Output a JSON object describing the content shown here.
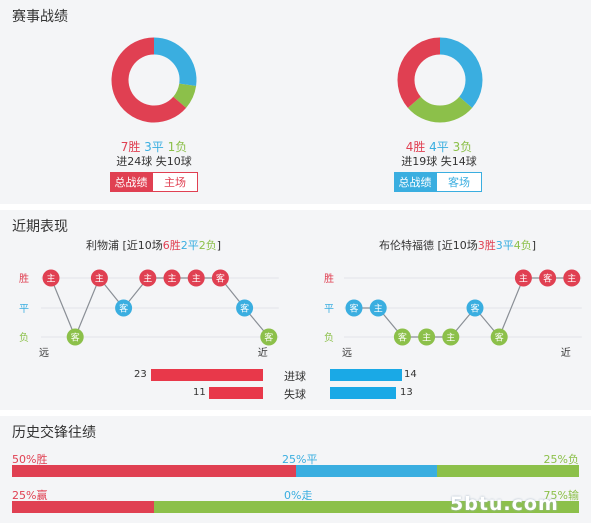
{
  "section1": {
    "title": "赛事战绩",
    "left": {
      "win": 7,
      "draw": 3,
      "loss": 1,
      "win_text": "7胜",
      "draw_text": "3平",
      "loss_text": "1负",
      "goals_text": "进24球 失10球",
      "tab_active": "总战绩",
      "tab_other": "主场"
    },
    "right": {
      "win": 4,
      "draw": 4,
      "loss": 3,
      "win_text": "4胜",
      "draw_text": "4平",
      "loss_text": "3负",
      "goals_text": "进19球 失14球",
      "tab_active": "总战绩",
      "tab_other": "客场"
    }
  },
  "section2": {
    "title": "近期表现",
    "y_labels": {
      "win": "胜",
      "draw": "平",
      "loss": "负"
    },
    "far": "远",
    "near": "近",
    "left_team": {
      "name": "利物浦",
      "prefix": "[近10场",
      "w": "6胜",
      "d": "2平",
      "l": "2负",
      "suffix": "]"
    },
    "right_team": {
      "name": "布伦特福德",
      "prefix": "[近10场",
      "w": "3胜",
      "d": "3平",
      "l": "4负",
      "suffix": "]"
    },
    "left_form": [
      {
        "r": "w",
        "v": "主"
      },
      {
        "r": "l",
        "v": "客"
      },
      {
        "r": "w",
        "v": "主"
      },
      {
        "r": "d",
        "v": "客"
      },
      {
        "r": "w",
        "v": "主"
      },
      {
        "r": "w",
        "v": "主"
      },
      {
        "r": "w",
        "v": "主"
      },
      {
        "r": "w",
        "v": "客"
      },
      {
        "r": "d",
        "v": "客"
      },
      {
        "r": "l",
        "v": "客"
      }
    ],
    "right_form": [
      {
        "r": "d",
        "v": "客"
      },
      {
        "r": "d",
        "v": "主"
      },
      {
        "r": "l",
        "v": "客"
      },
      {
        "r": "l",
        "v": "主"
      },
      {
        "r": "l",
        "v": "主"
      },
      {
        "r": "d",
        "v": "客"
      },
      {
        "r": "l",
        "v": "客"
      },
      {
        "r": "w",
        "v": "主"
      },
      {
        "r": "w",
        "v": "客"
      },
      {
        "r": "w",
        "v": "主"
      }
    ],
    "goals_for_label": "进球",
    "goals_against_label": "失球",
    "left_goals_for": 23,
    "left_goals_against": 11,
    "right_goals_for": 14,
    "right_goals_against": 13
  },
  "section3": {
    "title": "历史交锋往绩",
    "row1": {
      "left": "50%胜",
      "mid": "25%平",
      "right": "25%负",
      "a": 50,
      "b": 25,
      "c": 25
    },
    "row2": {
      "left": "25%赢",
      "mid": "0%走",
      "right": "75%输",
      "a": 25,
      "b": 0,
      "c": 75
    }
  },
  "colors": {
    "win": "#e04052",
    "draw": "#3aaee0",
    "loss": "#8cc04a",
    "bar_red": "#e8384a",
    "bar_blue": "#1aa9e6"
  },
  "watermark": "5btu.com"
}
